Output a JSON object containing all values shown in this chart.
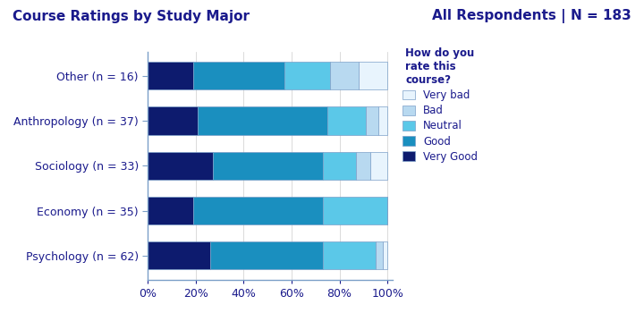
{
  "title_left": "Course Ratings by Study Major",
  "title_right": "All Respondents | N = 183",
  "legend_title": "How do you\nrate this\ncourse?",
  "categories": [
    "Psychology (n = 62)",
    "Economy (n = 35)",
    "Sociology (n = 33)",
    "Anthropology (n = 37)",
    "Other (n = 16)"
  ],
  "stack_order": [
    "Very Good",
    "Good",
    "Neutral",
    "Bad",
    "Very bad"
  ],
  "segments": {
    "Very Good": [
      0.26,
      0.19,
      0.27,
      0.21,
      0.19
    ],
    "Good": [
      0.47,
      0.54,
      0.46,
      0.54,
      0.38
    ],
    "Neutral": [
      0.22,
      0.27,
      0.14,
      0.16,
      0.19
    ],
    "Bad": [
      0.03,
      0.0,
      0.06,
      0.05,
      0.12
    ],
    "Very bad": [
      0.02,
      0.0,
      0.07,
      0.04,
      0.12
    ]
  },
  "colors": {
    "Very Good": "#0d1b6e",
    "Good": "#1a8fbf",
    "Neutral": "#5bc8e8",
    "Bad": "#b8d9f0",
    "Very bad": "#e8f4fd"
  },
  "legend_order": [
    "Very bad",
    "Bad",
    "Neutral",
    "Good",
    "Very Good"
  ],
  "bar_color_spine": "#7b9fc8",
  "title_color": "#1a1a8c",
  "label_color": "#1a1a8c",
  "background_color": "#ffffff",
  "plot_background": "#ffffff",
  "xlabel_ticks": [
    "0%",
    "20%",
    "40%",
    "60%",
    "80%",
    "100%"
  ],
  "xlabel_vals": [
    0,
    0.2,
    0.4,
    0.6,
    0.8,
    1.0
  ]
}
